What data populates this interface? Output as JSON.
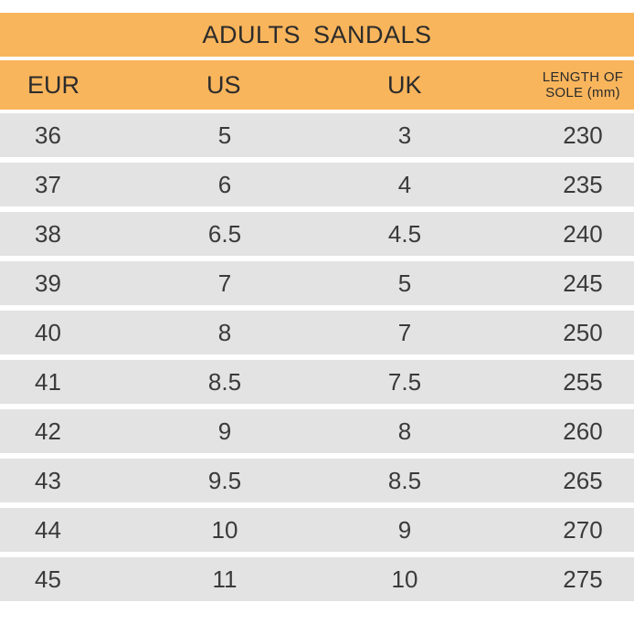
{
  "title": "ADULTS  SANDALS",
  "headers": {
    "eur": "EUR",
    "us": "US",
    "uk": "UK",
    "length_line1": "LENGTH OF",
    "length_line2": "SOLE  (mm)"
  },
  "rows": [
    {
      "eur": "36",
      "us": "5",
      "uk": "3",
      "length": "230"
    },
    {
      "eur": "37",
      "us": "6",
      "uk": "4",
      "length": "235"
    },
    {
      "eur": "38",
      "us": "6.5",
      "uk": "4.5",
      "length": "240"
    },
    {
      "eur": "39",
      "us": "7",
      "uk": "5",
      "length": "245"
    },
    {
      "eur": "40",
      "us": "8",
      "uk": "7",
      "length": "250"
    },
    {
      "eur": "41",
      "us": "8.5",
      "uk": "7.5",
      "length": "255"
    },
    {
      "eur": "42",
      "us": "9",
      "uk": "8",
      "length": "260"
    },
    {
      "eur": "43",
      "us": "9.5",
      "uk": "8.5",
      "length": "265"
    },
    {
      "eur": "44",
      "us": "10",
      "uk": "9",
      "length": "270"
    },
    {
      "eur": "45",
      "us": "11",
      "uk": "10",
      "length": "275"
    }
  ],
  "colors": {
    "header_bg": "#f9b55c",
    "row_bg": "#e3e3e3",
    "text": "#3a3a3a"
  }
}
